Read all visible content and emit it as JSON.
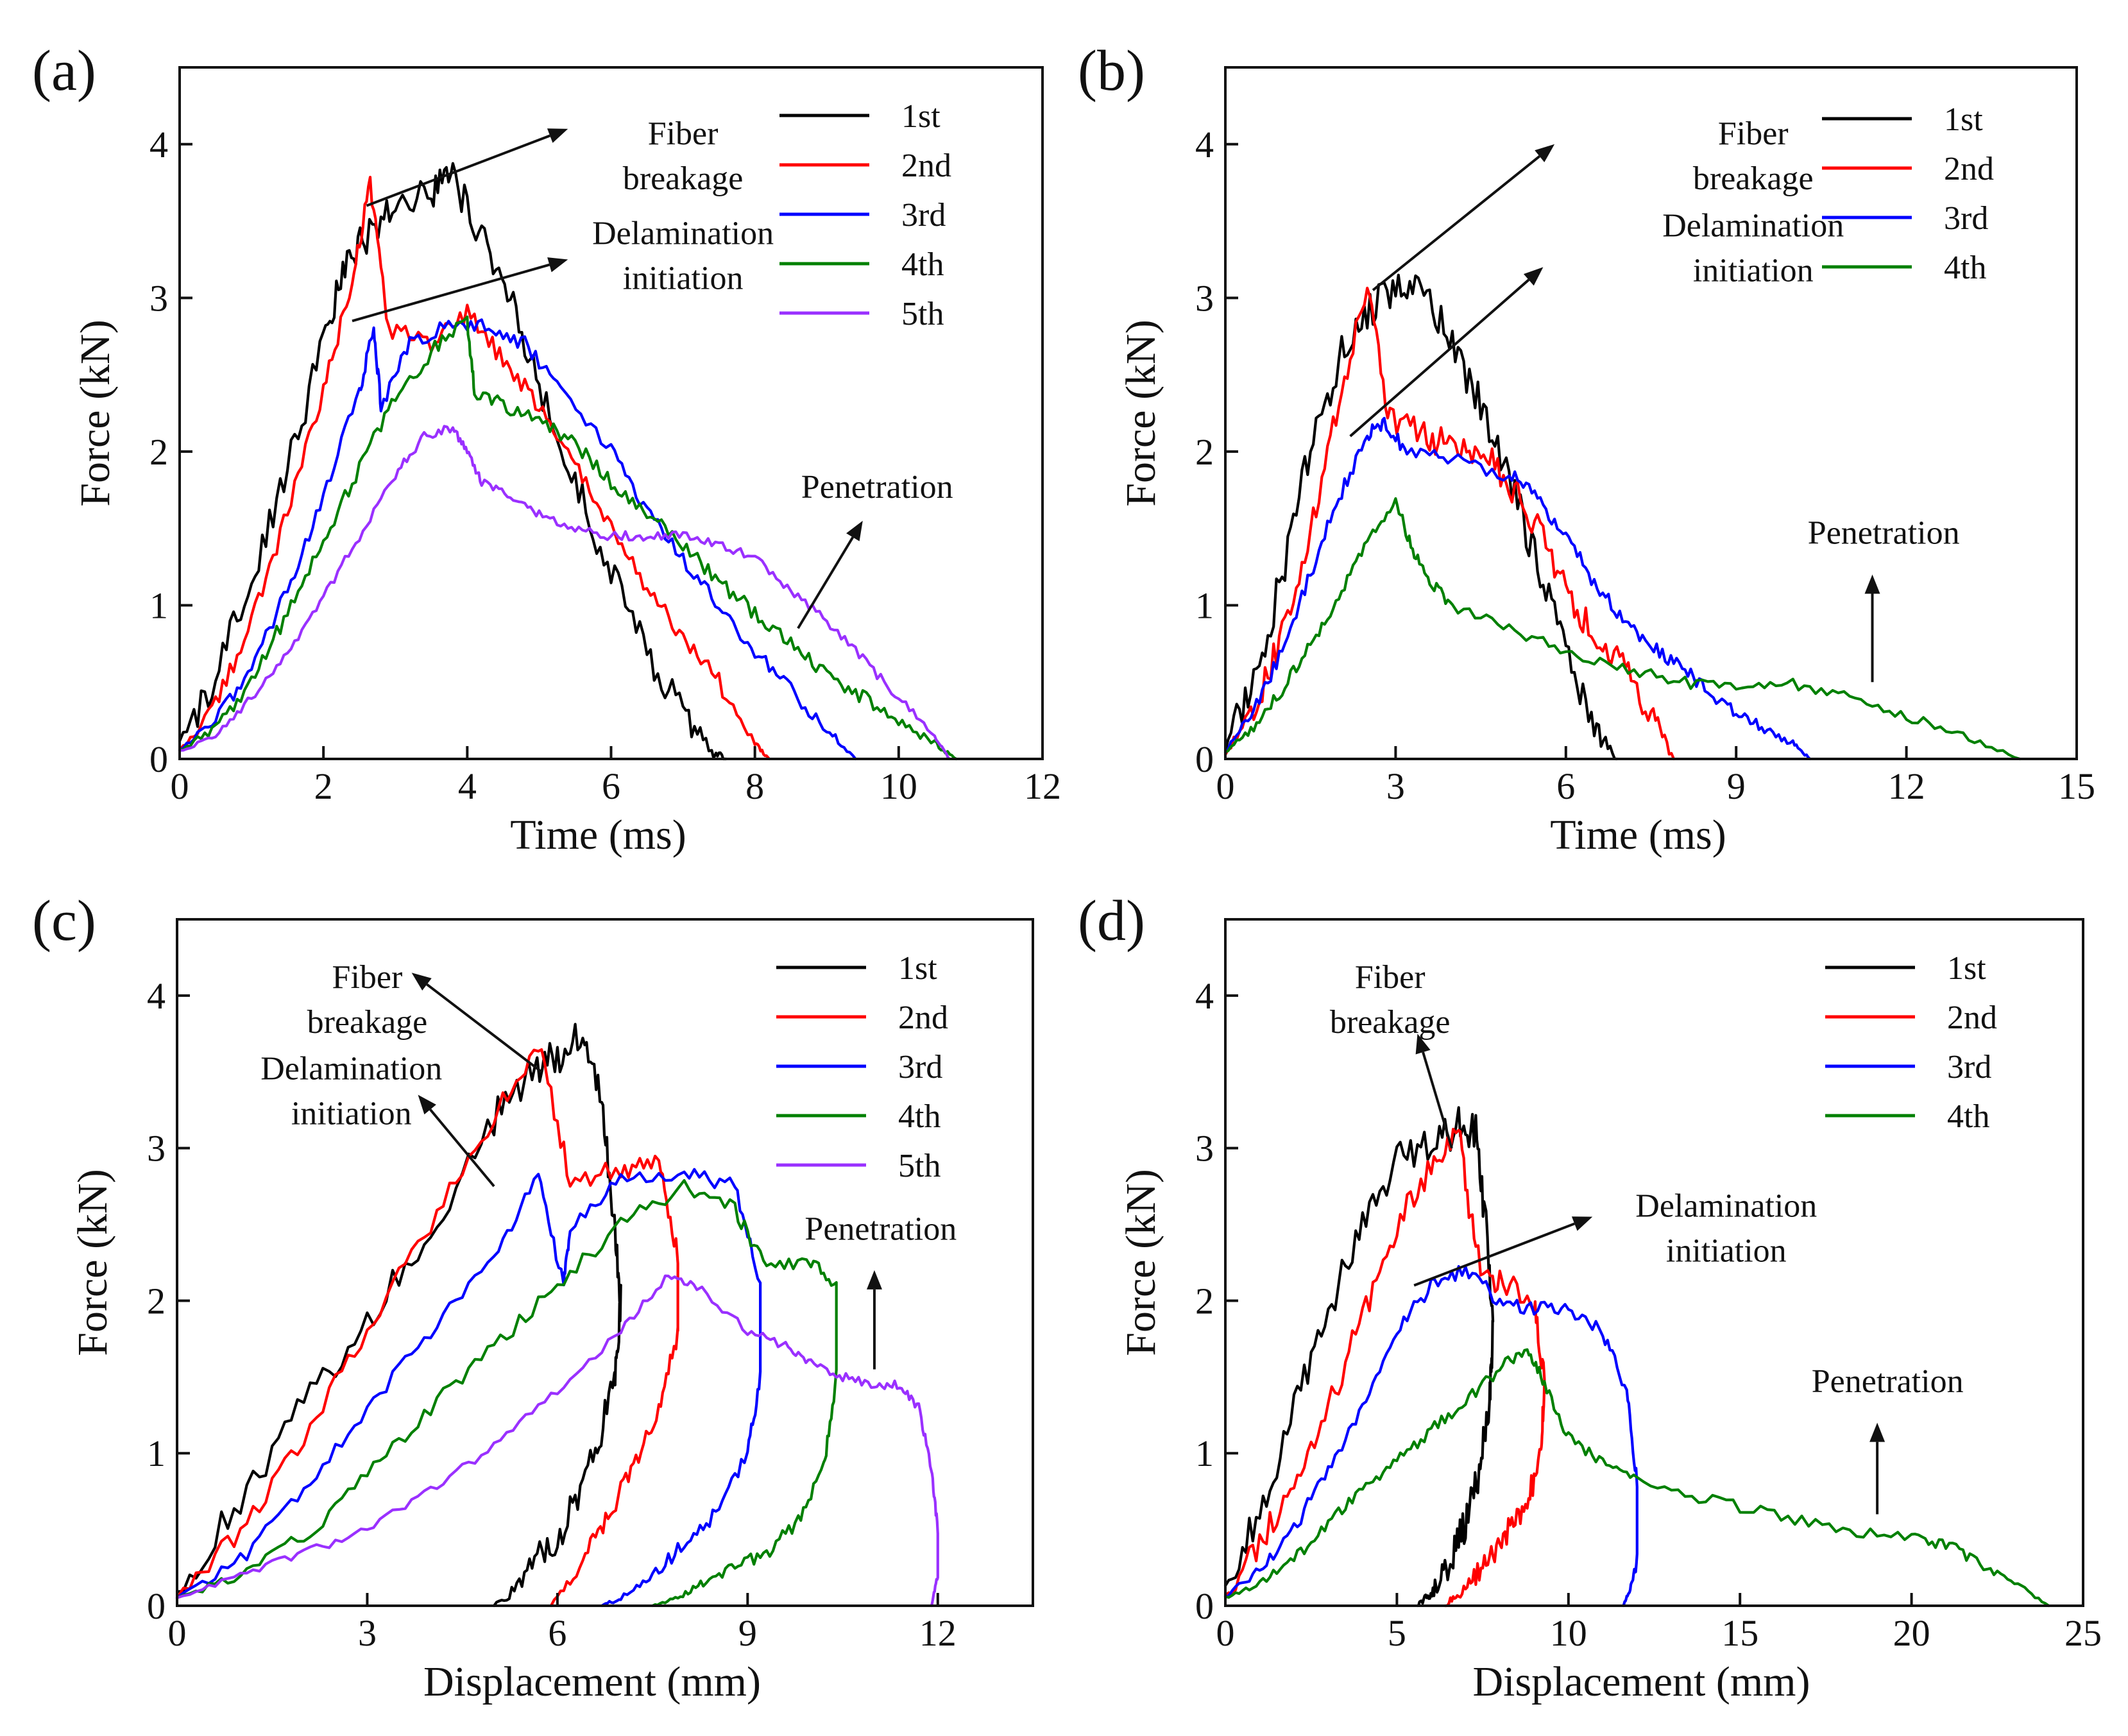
{
  "colors": {
    "1st": "#000000",
    "2nd": "#ff0000",
    "3rd": "#0000ff",
    "4th": "#008000",
    "5th": "#9a30ff"
  },
  "chart_data": [
    {
      "panel": "(a)",
      "type": "line",
      "xlabel": "Time (ms)",
      "ylabel": "Force (kN)",
      "xlim": [
        0,
        12
      ],
      "ylim": [
        0,
        4.5
      ],
      "xticks": [
        0,
        2,
        4,
        6,
        8,
        10,
        12
      ],
      "yticks": [
        0,
        1,
        2,
        3,
        4
      ],
      "legend": "top-right",
      "series": [
        {
          "name": "1st",
          "color": "#000000",
          "noise": 0.12,
          "x": [
            0,
            0.5,
            1.0,
            1.5,
            2.0,
            2.3,
            2.6,
            3.0,
            3.5,
            3.8,
            4.2,
            4.6,
            5.0,
            5.5,
            6.0,
            6.5,
            7.0,
            7.4,
            7.6
          ],
          "y": [
            0.1,
            0.5,
            1.2,
            1.9,
            2.7,
            3.2,
            3.4,
            3.6,
            3.7,
            3.8,
            3.4,
            3.0,
            2.4,
            1.8,
            1.2,
            0.7,
            0.3,
            0.05,
            0
          ]
        },
        {
          "name": "2nd",
          "color": "#ff0000",
          "noise": 0.06,
          "x": [
            0,
            0.5,
            1.0,
            1.5,
            2.0,
            2.4,
            2.65,
            2.9,
            3.5,
            4.0,
            4.5,
            5.0,
            5.5,
            6.0,
            6.5,
            7.0,
            7.5,
            8.0,
            8.2
          ],
          "y": [
            0.05,
            0.35,
            0.9,
            1.6,
            2.4,
            3.1,
            3.75,
            2.8,
            2.7,
            2.9,
            2.6,
            2.3,
            1.9,
            1.5,
            1.1,
            0.8,
            0.5,
            0.1,
            0
          ]
        },
        {
          "name": "3rd",
          "color": "#0000ff",
          "noise": 0.05,
          "x": [
            0,
            0.5,
            1.0,
            1.5,
            2.0,
            2.5,
            2.7,
            2.8,
            3.2,
            3.8,
            4.3,
            4.8,
            5.3,
            6.0,
            6.5,
            7.0,
            7.5,
            8.0,
            8.5,
            9.0,
            9.4
          ],
          "y": [
            0.05,
            0.25,
            0.6,
            1.1,
            1.7,
            2.4,
            2.8,
            2.3,
            2.7,
            2.85,
            2.8,
            2.7,
            2.4,
            2.0,
            1.6,
            1.3,
            1.0,
            0.7,
            0.45,
            0.2,
            0
          ]
        },
        {
          "name": "4th",
          "color": "#008000",
          "noise": 0.05,
          "x": [
            0,
            0.5,
            1.0,
            1.5,
            2.0,
            2.5,
            3.0,
            3.5,
            4.0,
            4.1,
            4.5,
            5.0,
            5.5,
            6.0,
            6.5,
            7.0,
            7.5,
            8.0,
            8.5,
            9.0,
            9.5,
            10.0,
            10.5,
            10.8
          ],
          "y": [
            0.05,
            0.2,
            0.5,
            0.95,
            1.4,
            1.9,
            2.35,
            2.65,
            2.85,
            2.4,
            2.3,
            2.2,
            2.05,
            1.8,
            1.6,
            1.4,
            1.15,
            0.95,
            0.75,
            0.55,
            0.4,
            0.25,
            0.1,
            0
          ]
        },
        {
          "name": "5th",
          "color": "#9a30ff",
          "noise": 0.03,
          "x": [
            0,
            0.5,
            1.0,
            1.5,
            2.0,
            2.5,
            3.0,
            3.4,
            3.8,
            4.0,
            4.2,
            4.6,
            5.0,
            5.5,
            6.0,
            6.5,
            7.0,
            7.5,
            8.0,
            8.5,
            9.0,
            9.5,
            10.0,
            10.5,
            10.7
          ],
          "y": [
            0.05,
            0.15,
            0.4,
            0.7,
            1.05,
            1.45,
            1.85,
            2.1,
            2.15,
            2.0,
            1.8,
            1.7,
            1.6,
            1.5,
            1.45,
            1.45,
            1.45,
            1.4,
            1.3,
            1.1,
            0.9,
            0.65,
            0.4,
            0.15,
            0
          ]
        }
      ],
      "annotations": [
        {
          "lines": [
            "Fiber",
            "breakage"
          ],
          "tx": 7.0,
          "ty": 4.0,
          "ax0": 2.6,
          "ay0": 3.6,
          "ax1": 5.4,
          "ay1": 4.1
        },
        {
          "lines": [
            "Delamination",
            "initiation"
          ],
          "tx": 7.0,
          "ty": 3.35,
          "ax0": 2.4,
          "ay0": 2.85,
          "ax1": 5.4,
          "ay1": 3.25
        },
        {
          "lines": [
            "Penetration"
          ],
          "tx": 9.7,
          "ty": 1.7,
          "ax0": 8.6,
          "ay0": 0.85,
          "ax1": 9.5,
          "ay1": 1.55
        }
      ]
    },
    {
      "panel": "(b)",
      "type": "line",
      "xlabel": "Time (ms)",
      "ylabel": "Force (kN)",
      "xlim": [
        0,
        15
      ],
      "ylim": [
        0,
        4.5
      ],
      "xticks": [
        0,
        3,
        6,
        9,
        12,
        15
      ],
      "yticks": [
        0,
        1,
        2,
        3,
        4
      ],
      "legend": "top-right",
      "series": [
        {
          "name": "1st",
          "color": "#000000",
          "noise": 0.13,
          "x": [
            0,
            0.5,
            1.0,
            1.5,
            2.0,
            2.5,
            3.0,
            3.5,
            4.0,
            4.5,
            5.0,
            5.5,
            6.0,
            6.5,
            6.9
          ],
          "y": [
            0.1,
            0.5,
            1.2,
            2.0,
            2.6,
            2.9,
            3.1,
            3.0,
            2.7,
            2.3,
            1.8,
            1.3,
            0.7,
            0.2,
            0
          ]
        },
        {
          "name": "2nd",
          "color": "#ff0000",
          "noise": 0.1,
          "x": [
            0,
            0.5,
            1.0,
            1.5,
            2.0,
            2.5,
            2.9,
            3.5,
            4.0,
            4.5,
            5.0,
            5.5,
            6.0,
            6.5,
            7.0,
            7.5,
            7.9
          ],
          "y": [
            0.05,
            0.3,
            0.8,
            1.5,
            2.3,
            3.1,
            2.2,
            2.1,
            2.05,
            2.0,
            1.8,
            1.5,
            1.1,
            0.8,
            0.6,
            0.3,
            0
          ]
        },
        {
          "name": "3rd",
          "color": "#0000ff",
          "noise": 0.05,
          "x": [
            0,
            0.5,
            1.0,
            1.5,
            2.0,
            2.5,
            2.8,
            3.2,
            4.0,
            5.0,
            5.5,
            6.0,
            6.5,
            7.0,
            7.5,
            8.0,
            8.5,
            9.0,
            9.5,
            10.0,
            10.3
          ],
          "y": [
            0.05,
            0.3,
            0.7,
            1.2,
            1.7,
            2.1,
            2.2,
            2.0,
            1.95,
            1.85,
            1.7,
            1.45,
            1.15,
            0.9,
            0.75,
            0.6,
            0.45,
            0.3,
            0.2,
            0.1,
            0
          ]
        },
        {
          "name": "4th",
          "color": "#008000",
          "noise": 0.04,
          "x": [
            0,
            0.5,
            1.0,
            1.5,
            2.0,
            2.5,
            3.0,
            3.3,
            3.6,
            4.0,
            5.0,
            6.0,
            7.0,
            8.0,
            9.0,
            10.0,
            11.0,
            12.0,
            13.0,
            14.0
          ],
          "y": [
            0.05,
            0.2,
            0.45,
            0.75,
            1.05,
            1.4,
            1.7,
            1.35,
            1.15,
            1.0,
            0.85,
            0.7,
            0.6,
            0.5,
            0.45,
            0.48,
            0.4,
            0.28,
            0.15,
            0
          ]
        }
      ],
      "annotations": [
        {
          "lines": [
            "Fiber",
            "breakage"
          ],
          "tx": 9.3,
          "ty": 4.0,
          "ax0": 2.6,
          "ay0": 3.05,
          "ax1": 5.8,
          "ay1": 4.0
        },
        {
          "lines": [
            "Delamination",
            "initiation"
          ],
          "tx": 9.3,
          "ty": 3.4,
          "ax0": 2.2,
          "ay0": 2.1,
          "ax1": 5.6,
          "ay1": 3.2
        },
        {
          "lines": [
            "Penetration"
          ],
          "tx": 11.6,
          "ty": 1.4,
          "ax0": 11.4,
          "ay0": 0.5,
          "ax1": 11.4,
          "ay1": 1.2
        }
      ]
    },
    {
      "panel": "(c)",
      "type": "line",
      "xlabel": "Displacement (mm)",
      "ylabel": "Force (kN)",
      "xlim": [
        0,
        13.5
      ],
      "ylim": [
        0,
        4.5
      ],
      "xticks": [
        0,
        3,
        6,
        9,
        12
      ],
      "yticks": [
        0,
        1,
        2,
        3,
        4
      ],
      "legend": "top-right",
      "series": [
        {
          "name": "1st",
          "color": "#000000",
          "noise": 0.12,
          "x": [
            0,
            1.0,
            2.0,
            3.0,
            4.0,
            5.0,
            5.6,
            6.0,
            6.4,
            6.7,
            6.9,
            7.0,
            6.9,
            6.6,
            6.2,
            5.8,
            5.4,
            5.0
          ],
          "y": [
            0.1,
            0.7,
            1.3,
            1.9,
            2.5,
            3.2,
            3.5,
            3.6,
            3.75,
            3.3,
            2.5,
            2.0,
            1.5,
            1.0,
            0.6,
            0.35,
            0.15,
            0
          ]
        },
        {
          "name": "2nd",
          "color": "#ff0000",
          "noise": 0.07,
          "x": [
            0,
            1.0,
            2.0,
            3.0,
            4.0,
            5.0,
            5.7,
            6.2,
            7.0,
            7.6,
            7.9,
            7.9,
            7.6,
            7.2,
            6.8,
            6.4,
            5.9
          ],
          "y": [
            0.05,
            0.5,
            1.1,
            1.8,
            2.5,
            3.2,
            3.7,
            2.8,
            2.85,
            2.9,
            2.3,
            1.8,
            1.3,
            0.9,
            0.6,
            0.3,
            0
          ]
        },
        {
          "name": "3rd",
          "color": "#0000ff",
          "noise": 0.05,
          "x": [
            0,
            1.0,
            2.0,
            3.0,
            4.0,
            5.0,
            5.7,
            6.1,
            6.2,
            7.0,
            8.0,
            8.8,
            9.2,
            9.2,
            9.0,
            8.5,
            8.0,
            7.5,
            7.0,
            6.7
          ],
          "y": [
            0.05,
            0.3,
            0.75,
            1.3,
            1.8,
            2.3,
            2.8,
            2.1,
            2.5,
            2.8,
            2.85,
            2.75,
            2.1,
            1.5,
            1.0,
            0.6,
            0.4,
            0.2,
            0.05,
            0
          ]
        },
        {
          "name": "4th",
          "color": "#008000",
          "noise": 0.05,
          "x": [
            0,
            1.0,
            2.0,
            3.0,
            4.0,
            5.0,
            6.0,
            7.0,
            8.0,
            8.8,
            9.3,
            10.0,
            10.4,
            10.4,
            10.2,
            9.8,
            9.3,
            8.8,
            8.3,
            7.9,
            7.5
          ],
          "y": [
            0.05,
            0.2,
            0.45,
            0.85,
            1.3,
            1.7,
            2.1,
            2.5,
            2.75,
            2.6,
            2.2,
            2.25,
            2.1,
            1.5,
            0.9,
            0.55,
            0.35,
            0.25,
            0.15,
            0.05,
            0
          ]
        },
        {
          "name": "5th",
          "color": "#9a30ff",
          "noise": 0.03,
          "x": [
            0,
            1.0,
            2.0,
            3.0,
            4.0,
            5.0,
            6.0,
            7.0,
            7.7,
            8.2,
            9.0,
            9.6,
            10.0,
            10.5,
            11.0,
            11.4,
            11.7,
            11.9,
            12.0,
            12.0,
            11.9
          ],
          "y": [
            0.05,
            0.2,
            0.35,
            0.5,
            0.75,
            1.05,
            1.4,
            1.8,
            2.15,
            2.1,
            1.8,
            1.7,
            1.6,
            1.5,
            1.45,
            1.45,
            1.3,
            0.9,
            0.5,
            0.2,
            0
          ]
        }
      ],
      "annotations": [
        {
          "lines": [
            "Fiber",
            "breakage"
          ],
          "tx": 3.0,
          "ty": 4.05,
          "ax0": 5.75,
          "ay0": 3.5,
          "ax1": 3.7,
          "ay1": 4.15
        },
        {
          "lines": [
            "Delamination",
            "initiation"
          ],
          "tx": 2.75,
          "ty": 3.45,
          "ax0": 5.0,
          "ay0": 2.75,
          "ax1": 3.8,
          "ay1": 3.35
        },
        {
          "lines": [
            "Penetration"
          ],
          "tx": 11.1,
          "ty": 2.4,
          "ax0": 11.0,
          "ay0": 1.55,
          "ax1": 11.0,
          "ay1": 2.2
        }
      ]
    },
    {
      "panel": "(d)",
      "type": "line",
      "xlabel": "Displacement (mm)",
      "ylabel": "Force (kN)",
      "xlim": [
        0,
        25
      ],
      "ylim": [
        0,
        4.5
      ],
      "xticks": [
        0,
        5,
        10,
        15,
        20,
        25
      ],
      "yticks": [
        0,
        1,
        2,
        3,
        4
      ],
      "legend": "top-right",
      "series": [
        {
          "name": "1st",
          "color": "#000000",
          "noise": 0.13,
          "x": [
            0,
            1.0,
            2.0,
            3.0,
            4.0,
            5.0,
            6.0,
            6.8,
            7.3,
            7.6,
            7.8,
            7.7,
            7.4,
            7.0,
            6.6,
            6.2,
            5.9,
            5.6
          ],
          "y": [
            0.1,
            0.6,
            1.3,
            1.9,
            2.5,
            2.9,
            3.0,
            3.15,
            3.1,
            2.5,
            1.8,
            1.3,
            0.9,
            0.55,
            0.3,
            0.15,
            0.05,
            0
          ]
        },
        {
          "name": "2nd",
          "color": "#ff0000",
          "noise": 0.1,
          "x": [
            0,
            1.0,
            2.0,
            3.0,
            4.0,
            5.0,
            6.0,
            6.8,
            7.3,
            8.0,
            9.0,
            9.3,
            9.2,
            8.8,
            8.3,
            7.8,
            7.3,
            6.8,
            6.4
          ],
          "y": [
            0.05,
            0.4,
            0.8,
            1.3,
            1.9,
            2.5,
            2.9,
            3.15,
            2.3,
            2.1,
            2.0,
            1.5,
            1.0,
            0.7,
            0.5,
            0.35,
            0.2,
            0.08,
            0
          ]
        },
        {
          "name": "3rd",
          "color": "#0000ff",
          "noise": 0.05,
          "x": [
            0,
            1.0,
            2.0,
            3.0,
            4.0,
            5.0,
            6.0,
            7.0,
            8.0,
            9.0,
            10.0,
            11.0,
            11.7,
            12.0,
            12.0,
            11.8,
            11.6
          ],
          "y": [
            0.05,
            0.25,
            0.5,
            0.9,
            1.3,
            1.8,
            2.1,
            2.2,
            2.0,
            1.95,
            1.95,
            1.8,
            1.4,
            0.8,
            0.3,
            0.1,
            0
          ]
        },
        {
          "name": "4th",
          "color": "#008000",
          "noise": 0.04,
          "x": [
            0,
            1.0,
            2.0,
            3.0,
            4.0,
            5.0,
            6.0,
            7.0,
            8.0,
            8.8,
            9.3,
            10.0,
            11.0,
            12.0,
            14.0,
            16.0,
            18.0,
            20.0,
            21.0,
            22.0,
            23.0,
            24.0
          ],
          "y": [
            0.05,
            0.15,
            0.3,
            0.55,
            0.75,
            0.95,
            1.15,
            1.35,
            1.55,
            1.7,
            1.45,
            1.1,
            0.95,
            0.85,
            0.7,
            0.6,
            0.5,
            0.45,
            0.4,
            0.28,
            0.15,
            0
          ]
        }
      ],
      "annotations": [
        {
          "lines": [
            "Fiber",
            "breakage"
          ],
          "tx": 4.8,
          "ty": 4.05,
          "ax0": 6.6,
          "ay0": 3.0,
          "ax1": 5.6,
          "ay1": 3.75
        },
        {
          "lines": [
            "Delamination",
            "initiation"
          ],
          "tx": 14.6,
          "ty": 2.55,
          "ax0": 5.5,
          "ay0": 2.1,
          "ax1": 10.7,
          "ay1": 2.55
        },
        {
          "lines": [
            "Penetration"
          ],
          "tx": 19.3,
          "ty": 1.4,
          "ax0": 19.0,
          "ay0": 0.6,
          "ax1": 19.0,
          "ay1": 1.2
        }
      ]
    }
  ]
}
